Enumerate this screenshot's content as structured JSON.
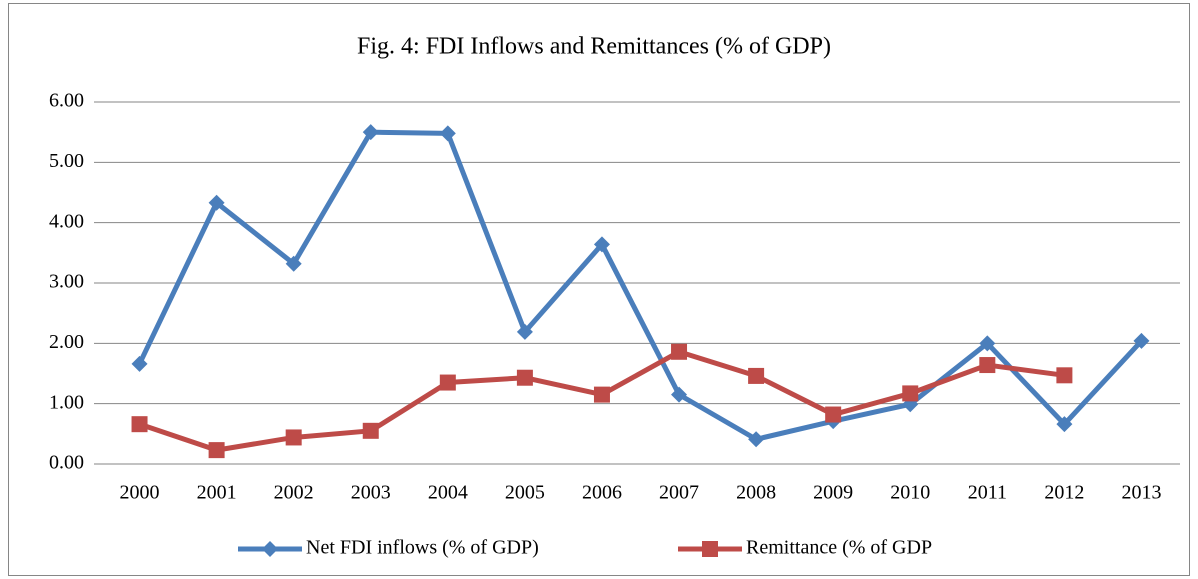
{
  "chart_data": {
    "type": "line",
    "title": "Fig. 4: FDI Inflows and Remittances (% of GDP)",
    "categories": [
      "2000",
      "2001",
      "2002",
      "2003",
      "2004",
      "2005",
      "2006",
      "2007",
      "2008",
      "2009",
      "2010",
      "2011",
      "2012",
      "2013"
    ],
    "series": [
      {
        "name": "Net FDI inflows (% of GDP)",
        "color": "#4a7ebb",
        "marker": "diamond",
        "values": [
          1.66,
          4.33,
          3.32,
          5.5,
          5.48,
          2.19,
          3.64,
          1.15,
          0.41,
          0.71,
          0.99,
          2.0,
          0.66,
          2.04
        ]
      },
      {
        "name": "Remittance (% of GDP",
        "color": "#be4b48",
        "marker": "square",
        "values": [
          0.66,
          0.23,
          0.44,
          0.55,
          1.35,
          1.43,
          1.15,
          1.86,
          1.46,
          0.82,
          1.17,
          1.64,
          1.47,
          null
        ]
      }
    ],
    "ylim": [
      0,
      6
    ],
    "yticks": [
      {
        "value": 0,
        "label": "0.00"
      },
      {
        "value": 1,
        "label": "1.00"
      },
      {
        "value": 2,
        "label": "2.00"
      },
      {
        "value": 3,
        "label": "3.00"
      },
      {
        "value": 4,
        "label": "4.00"
      },
      {
        "value": 5,
        "label": "5.00"
      },
      {
        "value": 6,
        "label": "6.00"
      }
    ],
    "grid": true,
    "legend": "bottom"
  }
}
